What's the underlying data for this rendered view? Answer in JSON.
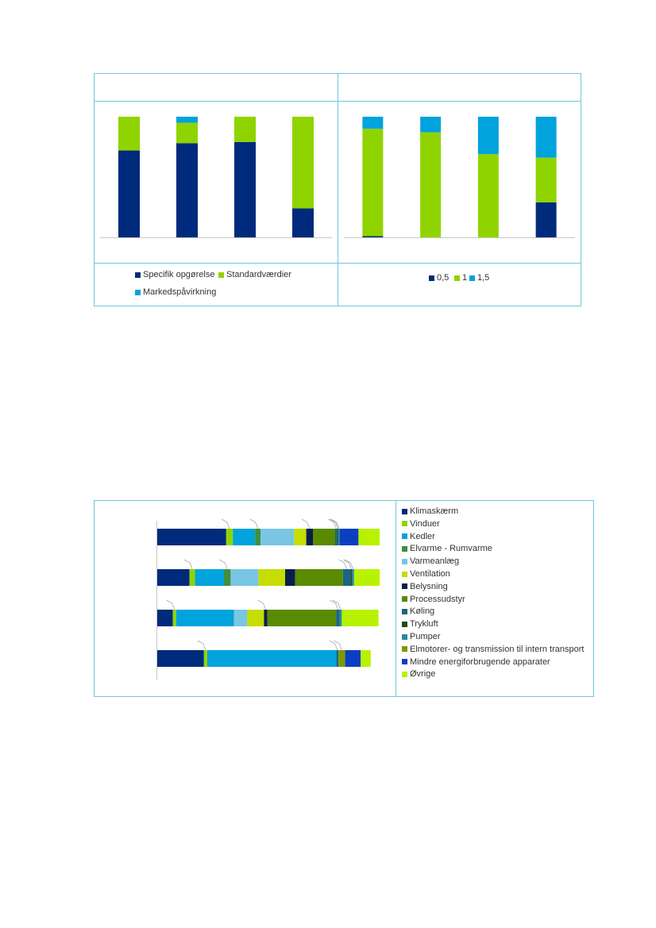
{
  "colors": {
    "frame": "#6fc9dc",
    "axis": "#c8c8c8",
    "leader": "#a8a8a8"
  },
  "chart_data": [
    {
      "type": "bar",
      "stacked": true,
      "percent": true,
      "title": "",
      "xlabel": "",
      "ylabel": "",
      "ylim": [
        0,
        100
      ],
      "grid": false,
      "legend_position": "bottom",
      "categories": [
        "",
        "",
        "",
        ""
      ],
      "series": [
        {
          "name": "Specifik opgørelse",
          "color": "#002a7c",
          "values": [
            72,
            78,
            79,
            24
          ]
        },
        {
          "name": "Standardværdier",
          "color": "#8fd400",
          "values": [
            28,
            17,
            21,
            76
          ]
        },
        {
          "name": "Markedspåvirkning",
          "color": "#00a3dc",
          "values": [
            0,
            5,
            0,
            0
          ]
        }
      ]
    },
    {
      "type": "bar",
      "stacked": true,
      "percent": true,
      "title": "",
      "xlabel": "",
      "ylabel": "",
      "ylim": [
        0,
        100
      ],
      "grid": false,
      "legend_position": "bottom",
      "categories": [
        "",
        "",
        "",
        ""
      ],
      "series": [
        {
          "name": "0,5",
          "color": "#002a7c",
          "values": [
            1,
            0,
            0,
            29
          ]
        },
        {
          "name": "1",
          "color": "#8fd400",
          "values": [
            89,
            87,
            69,
            37
          ]
        },
        {
          "name": "1,5",
          "color": "#00a3dc",
          "values": [
            10,
            13,
            31,
            34
          ]
        }
      ]
    },
    {
      "type": "bar",
      "orientation": "horizontal",
      "stacked": true,
      "percent": true,
      "title": "",
      "xlabel": "",
      "ylabel": "",
      "xlim": [
        0,
        100
      ],
      "grid": false,
      "legend_position": "right",
      "categories": [
        "",
        "",
        "",
        ""
      ],
      "series": [
        {
          "name": "Klimaskærm",
          "color": "#002a7c",
          "values": [
            31,
            14.5,
            7,
            21
          ]
        },
        {
          "name": "Vinduer",
          "color": "#8fd400",
          "values": [
            3,
            2.5,
            1.5,
            1.5
          ]
        },
        {
          "name": "Kedler",
          "color": "#00a3dc",
          "values": [
            10,
            13,
            26,
            58
          ]
        },
        {
          "name": "Elvarme - Rumvarme",
          "color": "#3f8f3f",
          "values": [
            2.5,
            3,
            0,
            0
          ]
        },
        {
          "name": "Varmeanlæg",
          "color": "#78c6e4",
          "values": [
            15,
            12.5,
            6,
            0
          ]
        },
        {
          "name": "Ventilation",
          "color": "#c5de00",
          "values": [
            5.5,
            12,
            7.5,
            0
          ]
        },
        {
          "name": "Belysning",
          "color": "#0a1e4b",
          "values": [
            3,
            4.5,
            1.5,
            0
          ]
        },
        {
          "name": "Processudstyr",
          "color": "#5a8a00",
          "values": [
            10,
            21.5,
            31,
            0
          ]
        },
        {
          "name": "Køling",
          "color": "#1a6680",
          "values": [
            1,
            3.5,
            1.5,
            1
          ]
        },
        {
          "name": "Trykluft",
          "color": "#1e4b1e",
          "values": [
            0.5,
            0.5,
            0,
            0
          ]
        },
        {
          "name": "Pumper",
          "color": "#2a8aa0",
          "values": [
            0.5,
            1,
            1,
            0
          ]
        },
        {
          "name": "Elmotorer- og transmission til intern transport",
          "color": "#7a9a00",
          "values": [
            0,
            0,
            0,
            3
          ]
        },
        {
          "name": "Mindre energiforbrugende apparater",
          "color": "#0b3fc2",
          "values": [
            8.5,
            0,
            0,
            7
          ]
        },
        {
          "name": "Øvrige",
          "color": "#b8f200",
          "values": [
            9.5,
            11.5,
            16.5,
            4.5
          ]
        }
      ]
    }
  ]
}
